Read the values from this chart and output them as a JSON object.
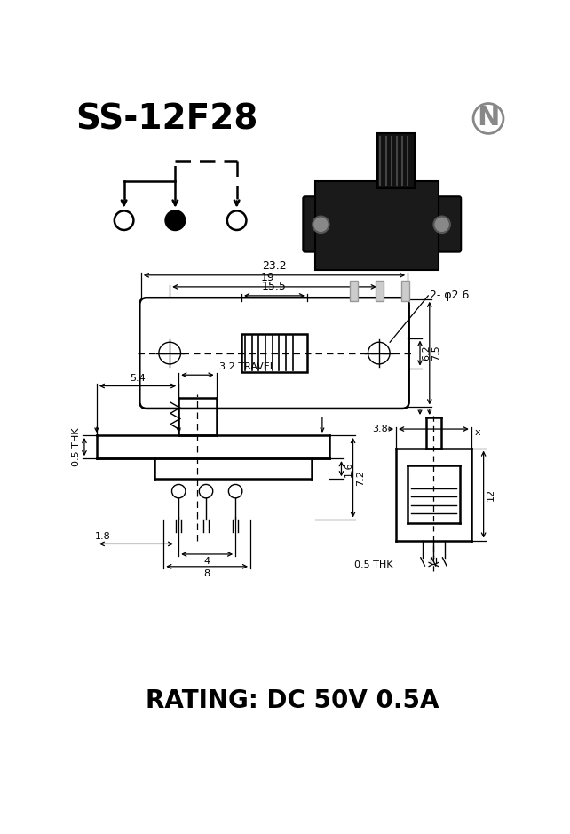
{
  "title": "SS-12F28",
  "rating": "RATING: DC 50V 0.5A",
  "bg_color": "#ffffff",
  "line_color": "#000000",
  "dim_23_2": "23.2",
  "dim_19": "19",
  "dim_15_5": "15.5",
  "dim_phi_2_6": "2- φ2.6",
  "dim_6_2": "6.2",
  "dim_7_5": "7.5",
  "dim_5_4": "5.4",
  "dim_3_2": "3.2 TRAVEL",
  "dim_1_6": "1.6",
  "dim_7_2": "7.2",
  "dim_0_5thk": "0.5 THK",
  "dim_1_8": "1.8",
  "dim_4": "4",
  "dim_8": "8",
  "dim_3_8": "3.8",
  "dim_12": "12",
  "dim_0_5thk2": "0.5 THK",
  "dim_x": "x"
}
